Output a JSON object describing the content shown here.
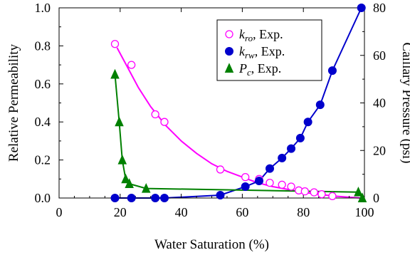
{
  "chart_data": {
    "type": "scatter",
    "xlabel": "Water Saturation (%)",
    "ylabel": "Relative Permeability",
    "y2label": "Caillary Pressure (psi)",
    "xlim": [
      0,
      100
    ],
    "ylim": [
      0,
      1.0
    ],
    "y2lim": [
      0,
      80
    ],
    "x_ticks": [
      0,
      20,
      40,
      60,
      80,
      100
    ],
    "y_ticks": [
      0.0,
      0.2,
      0.4,
      0.6,
      0.8,
      1.0
    ],
    "y_tick_labels": [
      "0.0",
      "0.2",
      "0.4",
      "0.6",
      "0.8",
      "1.0"
    ],
    "y2_ticks": [
      0,
      20,
      40,
      60,
      80
    ],
    "grid": false,
    "legend_position": "top-right",
    "series": [
      {
        "name": "k_ro, Exp.",
        "legend_main": "k",
        "legend_sub": "ro",
        "legend_rest": ", Exp.",
        "axis": "left",
        "marker": "open-circle",
        "color": "#ff00ff",
        "x": [
          18.3,
          23.7,
          31.5,
          34.5,
          52.8,
          61.0,
          65.5,
          69.0,
          73.0,
          76.0,
          78.5,
          80.5,
          83.5,
          86.0,
          89.5
        ],
        "y": [
          0.81,
          0.7,
          0.44,
          0.4,
          0.15,
          0.11,
          0.1,
          0.08,
          0.07,
          0.06,
          0.04,
          0.035,
          0.03,
          0.02,
          0.01
        ],
        "fit_x": [
          19,
          22,
          26,
          30,
          35,
          40,
          45,
          50,
          55,
          60,
          65,
          70,
          75,
          80,
          85,
          90,
          95,
          99
        ],
        "fit_y": [
          0.79,
          0.7,
          0.58,
          0.48,
          0.38,
          0.3,
          0.235,
          0.18,
          0.14,
          0.11,
          0.08,
          0.06,
          0.045,
          0.03,
          0.02,
          0.01,
          0.004,
          0.0
        ]
      },
      {
        "name": "k_rw, Exp.",
        "legend_main": "k",
        "legend_sub": "rw",
        "legend_rest": ", Exp.",
        "axis": "left",
        "marker": "filled-circle",
        "color": "#0000cc",
        "x": [
          18.3,
          23.7,
          31.5,
          34.5,
          52.8,
          61.0,
          65.5,
          69.0,
          73.0,
          76.0,
          79.0,
          81.5,
          85.5,
          89.5,
          99.0
        ],
        "y": [
          0.0,
          0.0,
          0.0,
          0.0,
          0.015,
          0.06,
          0.09,
          0.155,
          0.21,
          0.26,
          0.315,
          0.4,
          0.49,
          0.67,
          1.0
        ],
        "fit_x": [
          18.3,
          23.7,
          31.5,
          34.5,
          52.8,
          61.0,
          65.5,
          69.0,
          73.0,
          76.0,
          79.0,
          81.5,
          85.5,
          89.5,
          99.0
        ],
        "fit_y": [
          0.0,
          0.0,
          0.0,
          0.0,
          0.015,
          0.06,
          0.09,
          0.155,
          0.21,
          0.26,
          0.315,
          0.4,
          0.49,
          0.67,
          1.0
        ]
      },
      {
        "name": "P_c, Exp.",
        "legend_main": "P",
        "legend_sub": "c",
        "legend_rest": ", Exp.",
        "axis": "right",
        "marker": "filled-triangle",
        "color": "#008000",
        "x": [
          18.3,
          19.7,
          20.7,
          21.8,
          23.0,
          28.5,
          98.0,
          99.3
        ],
        "y": [
          52,
          32,
          16,
          8,
          6,
          4,
          2.5,
          0
        ],
        "fit_x": [
          18.3,
          19.7,
          20.7,
          21.8,
          23.0,
          28.5,
          98.0,
          99.3
        ],
        "fit_y": [
          52,
          32,
          16,
          8,
          6,
          4,
          2.5,
          0
        ]
      }
    ]
  }
}
